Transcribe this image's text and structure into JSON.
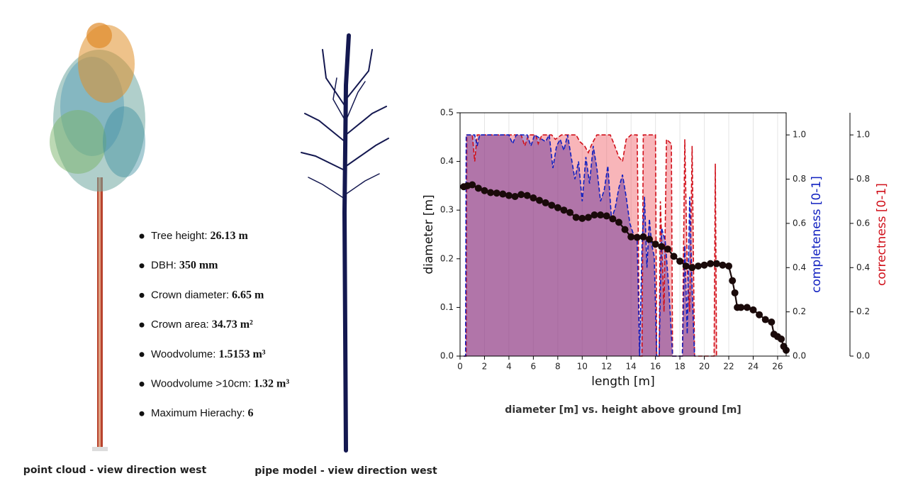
{
  "figures": {
    "point_cloud_caption": "point cloud - view direction west",
    "pipe_model_caption": "pipe model - view direction west"
  },
  "stats": [
    {
      "label": "Tree height:",
      "value": "26.13 m"
    },
    {
      "label": "DBH:",
      "value": "350 mm"
    },
    {
      "label": "Crown diameter:",
      "value": "6.65 m"
    },
    {
      "label": "Crown area:",
      "value": "34.73 m²"
    },
    {
      "label": "Woodvolume:",
      "value": "1.5153 m³"
    },
    {
      "label": "Woodvolume >10cm:",
      "value": "1.32 m³"
    },
    {
      "label": "Maximum Hierachy:",
      "value": "6"
    }
  ],
  "chart_data": {
    "type": "line",
    "title": "diameter [m] vs. height above ground [m]",
    "xlabel": "length [m]",
    "ylabel": "diameter [m]",
    "y2label": "completeness [0-1]",
    "y3label": "correctness [0-1]",
    "xlim": [
      0,
      26.7
    ],
    "xticks": [
      0,
      2,
      4,
      6,
      8,
      10,
      12,
      14,
      16,
      18,
      20,
      22,
      24,
      26
    ],
    "ylim": [
      0,
      0.5
    ],
    "yticks": [
      {
        "value": 0,
        "label": "0.0"
      },
      0.1,
      0.2,
      0.3,
      0.4,
      0.5
    ],
    "y2lim": [
      0,
      1.1
    ],
    "y2ticks": [
      {
        "value": 0,
        "label": "0.0"
      },
      0.2,
      0.4,
      0.6,
      0.8,
      {
        "value": 1,
        "label": "1.0"
      }
    ],
    "y3lim": [
      0,
      1.1
    ],
    "y3ticks": [
      {
        "value": 0,
        "label": "0.0"
      },
      0.2,
      0.4,
      0.6,
      0.8,
      {
        "value": 1,
        "label": "1.0"
      }
    ],
    "grid": true,
    "series": [
      {
        "axis": "y3",
        "color": "#d0101a",
        "fill": "rgba(240,90,100,0.45)",
        "x": [
          0.3,
          0.5,
          0.55,
          1.0,
          1.2,
          1.4,
          5,
          5.3,
          5.6,
          6.2,
          6.4,
          6.7,
          7.5,
          7.8,
          8.3,
          9.5,
          9.8,
          10.2,
          10.5,
          10.8,
          11.2,
          12.3,
          12.6,
          13,
          13.3,
          13.6,
          14.0,
          14.5,
          14.7,
          14.9,
          15.0,
          16.0,
          16.1,
          16.3,
          16.4,
          16.7,
          16.9,
          17.3,
          17.4,
          18.2,
          18.4,
          18.6,
          18.8,
          19.0,
          19.2,
          20.8,
          20.9,
          21.0
        ],
        "values": [
          0,
          0,
          1.0,
          1.0,
          0.88,
          1.0,
          1.0,
          0.95,
          1.0,
          1.0,
          0.96,
          1.0,
          1.0,
          0.98,
          1.0,
          1.0,
          0.97,
          0.95,
          0.92,
          0.96,
          1.0,
          1.0,
          0.96,
          0.9,
          0.88,
          0.98,
          1.0,
          1.0,
          0,
          0,
          1.0,
          1.0,
          0,
          0,
          0.7,
          0.2,
          0.98,
          0.96,
          0,
          0,
          0.98,
          0.4,
          0.2,
          0.95,
          0,
          0,
          0.87,
          0
        ]
      },
      {
        "axis": "y2",
        "color": "#1020c0",
        "fill": "rgba(90,40,150,0.45)",
        "x": [
          0.3,
          0.45,
          0.5,
          1.2,
          1.4,
          1.6,
          4,
          4.3,
          4.6,
          5.5,
          5.8,
          6.1,
          7,
          7.3,
          7.6,
          7.9,
          8.2,
          8.5,
          8.8,
          9.1,
          9.4,
          9.7,
          10,
          10.3,
          10.6,
          10.9,
          11.2,
          11.5,
          11.8,
          12.1,
          12.4,
          12.7,
          13,
          13.3,
          13.6,
          13.9,
          14.2,
          14.5,
          14.7,
          14.9,
          15.1,
          15.3,
          15.5,
          15.7,
          15.9,
          16.1,
          16.3,
          16.5,
          16.8,
          17.1,
          17.4,
          18.2,
          18.4,
          18.6,
          18.8,
          19.0,
          19.2
        ],
        "values": [
          0,
          0,
          1.0,
          1.0,
          0.95,
          1.0,
          1.0,
          0.96,
          1.0,
          1.0,
          0.95,
          1.0,
          0.97,
          1.0,
          0.85,
          0.95,
          0.98,
          0.93,
          1.0,
          0.9,
          0.8,
          0.88,
          0.7,
          0.9,
          0.78,
          0.95,
          0.85,
          0.7,
          0.75,
          0.86,
          0.62,
          0.67,
          0.76,
          0.82,
          0.72,
          0.6,
          0.55,
          0.53,
          0,
          0.5,
          0.72,
          0.4,
          0.62,
          0.5,
          0.45,
          0,
          0,
          0.58,
          0.52,
          0.3,
          0,
          0,
          0.5,
          0.1,
          0.72,
          0.3,
          0
        ]
      },
      {
        "axis": "y",
        "color": "#1a0a0a",
        "x": [
          0.3,
          0.6,
          1.0,
          1.5,
          2,
          2.5,
          3,
          3.5,
          4,
          4.5,
          5,
          5.5,
          6,
          6.5,
          7,
          7.5,
          8,
          8.5,
          9,
          9.5,
          10,
          10.5,
          11,
          11.5,
          12,
          12.5,
          13,
          13.5,
          14,
          14.5,
          15,
          15.5,
          16,
          16.5,
          17,
          17.5,
          18,
          18.5,
          19,
          19.5,
          20,
          20.5,
          21,
          21.5,
          22,
          22.3,
          22.5,
          22.7,
          23,
          23.5,
          24,
          24.5,
          25,
          25.5,
          25.7,
          26,
          26.3,
          26.5,
          26.7
        ],
        "values": [
          0.348,
          0.35,
          0.352,
          0.345,
          0.34,
          0.336,
          0.335,
          0.333,
          0.33,
          0.328,
          0.332,
          0.33,
          0.325,
          0.32,
          0.315,
          0.31,
          0.305,
          0.3,
          0.295,
          0.285,
          0.283,
          0.285,
          0.29,
          0.29,
          0.288,
          0.282,
          0.275,
          0.26,
          0.245,
          0.244,
          0.245,
          0.24,
          0.23,
          0.225,
          0.22,
          0.205,
          0.195,
          0.185,
          0.182,
          0.185,
          0.187,
          0.19,
          0.19,
          0.187,
          0.185,
          0.155,
          0.13,
          0.1,
          0.1,
          0.1,
          0.095,
          0.085,
          0.075,
          0.07,
          0.045,
          0.04,
          0.035,
          0.02,
          0.012
        ]
      }
    ]
  }
}
